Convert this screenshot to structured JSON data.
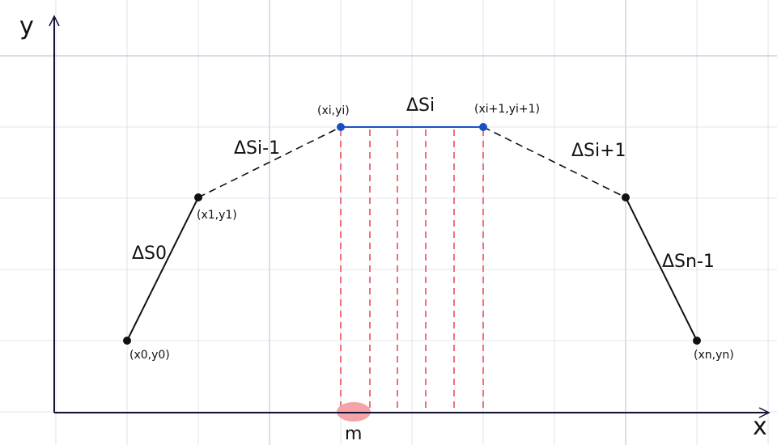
{
  "axes": {
    "x_label": "x",
    "y_label": "y"
  },
  "points": [
    {
      "id": "p0",
      "label": "(x0,y0)",
      "color": "#111111"
    },
    {
      "id": "p1",
      "label": "(x1,y1)",
      "color": "#111111"
    },
    {
      "id": "pi",
      "label": "(xi,yi)",
      "color": "#1a4fc4"
    },
    {
      "id": "pi1",
      "label": "(xi+1,yi+1)",
      "color": "#1a4fc4"
    },
    {
      "id": "pn1",
      "label": "",
      "color": "#111111"
    },
    {
      "id": "pn",
      "label": "(xn,yn)",
      "color": "#111111"
    }
  ],
  "segments": [
    {
      "id": "s0",
      "label": "ΔS0",
      "style": "solid",
      "color": "#111111"
    },
    {
      "id": "si-1",
      "label": "ΔSi-1",
      "style": "dashed",
      "color": "#111111"
    },
    {
      "id": "si",
      "label": "ΔSi",
      "style": "solid",
      "color": "#1a4fc4"
    },
    {
      "id": "si+1",
      "label": "ΔSi+1",
      "style": "dashed",
      "color": "#111111"
    },
    {
      "id": "sn-1",
      "label": "ΔSn-1",
      "style": "solid",
      "color": "#111111"
    }
  ],
  "marker": {
    "label": "m",
    "color": "#f5a3a8"
  },
  "projection_color": "#f0707a",
  "grid_color": "#d8dce8",
  "axis_color": "#111133"
}
